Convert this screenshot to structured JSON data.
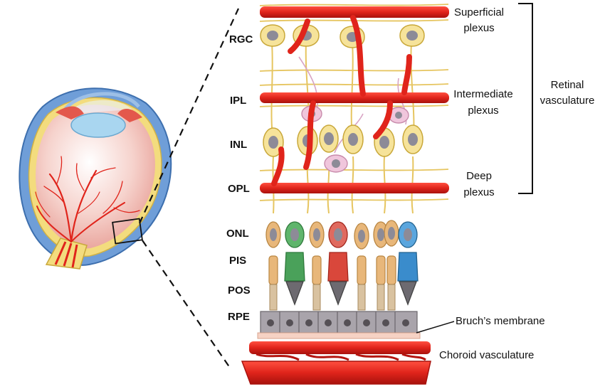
{
  "layers": [
    "RGC",
    "IPL",
    "INL",
    "OPL",
    "ONL",
    "PIS",
    "POS",
    "RPE"
  ],
  "plexus": {
    "superficial": [
      "Superficial",
      "plexus"
    ],
    "intermediate": [
      "Intermediate",
      "plexus"
    ],
    "deep": [
      "Deep",
      "plexus"
    ]
  },
  "retinal_vasculature": [
    "Retinal",
    "vasculature"
  ],
  "bruchs_membrane": "Bruch’s membrane",
  "choroid_vasculature": "Choroid vasculature",
  "colors": {
    "vessel": "#e0241b",
    "vessel_dark": "#b3140f",
    "neuron_fill": "#f6e39a",
    "neuron_stroke": "#c9a83a",
    "nucleus": "#8d8b97",
    "rpe": "#a9a4ab",
    "rod": "#d9a86c",
    "cone_green": "#4aa15a",
    "cone_red": "#d9473b",
    "cone_blue": "#3a8ccc",
    "eye_sclera": "#6f9ed8",
    "eye_interior": "#f3c6bf",
    "lens": "#a9d6f0"
  }
}
